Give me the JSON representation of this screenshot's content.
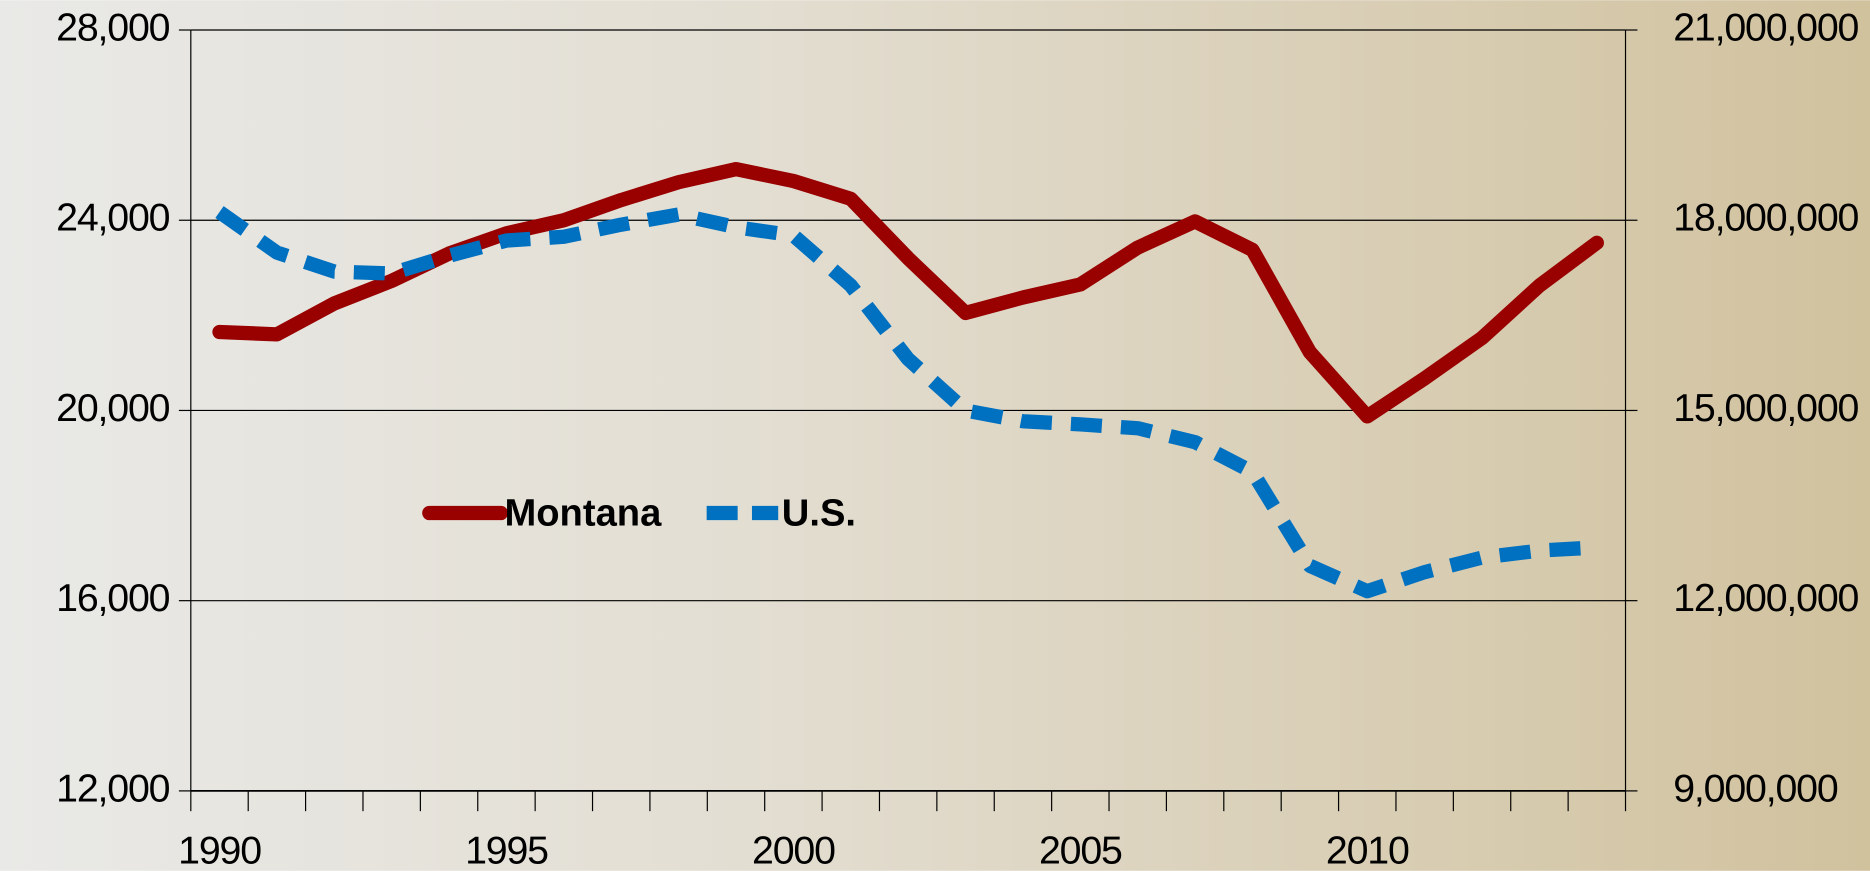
{
  "chart_data": {
    "type": "line",
    "x": [
      1990,
      1991,
      1992,
      1993,
      1994,
      1995,
      1996,
      1997,
      1998,
      1999,
      2000,
      2001,
      2002,
      2003,
      2004,
      2005,
      2006,
      2007,
      2008,
      2009,
      2010,
      2011,
      2012,
      2013,
      2014
    ],
    "xlim": [
      1989.5,
      2014.5
    ],
    "xticks": [
      1990,
      1995,
      2000,
      2005,
      2010
    ],
    "ylim": [
      12000,
      28000
    ],
    "yticks": [
      {
        "value": 12000,
        "label": "12,000"
      },
      {
        "value": 16000,
        "label": "16,000"
      },
      {
        "value": 20000,
        "label": "20,000"
      },
      {
        "value": 24000,
        "label": "24,000"
      },
      {
        "value": 28000,
        "label": "28,000"
      }
    ],
    "y2lim": [
      9000000,
      21000000
    ],
    "y2ticks": [
      {
        "value": 9000000,
        "label": "9,000,000"
      },
      {
        "value": 12000000,
        "label": "12,000,000"
      },
      {
        "value": 15000000,
        "label": "15,000,000"
      },
      {
        "value": 18000000,
        "label": "18,000,000"
      },
      {
        "value": 21000000,
        "label": "21,000,000"
      }
    ],
    "grid": true,
    "series": [
      {
        "name": "Montana",
        "color": "#990000",
        "dashed": false,
        "values": [
          21650,
          21600,
          22250,
          22725,
          23300,
          23725,
          24000,
          24425,
          24800,
          25075,
          24825,
          24450,
          23200,
          22050,
          22375,
          22650,
          23425,
          23975,
          23375,
          21225,
          19875,
          20675,
          21525,
          22625,
          23525
        ]
      },
      {
        "name": "U.S.",
        "color": "#0070c0",
        "dashed": true,
        "axis": "y2",
        "values": [
          18130000,
          17490000,
          17190000,
          17160000,
          17440000,
          17680000,
          17740000,
          17930000,
          18090000,
          17890000,
          17760000,
          16970000,
          15810000,
          15000000,
          14830000,
          14780000,
          14720000,
          14500000,
          14030000,
          12550000,
          12150000,
          12450000,
          12680000,
          12790000,
          12840000
        ]
      }
    ]
  }
}
